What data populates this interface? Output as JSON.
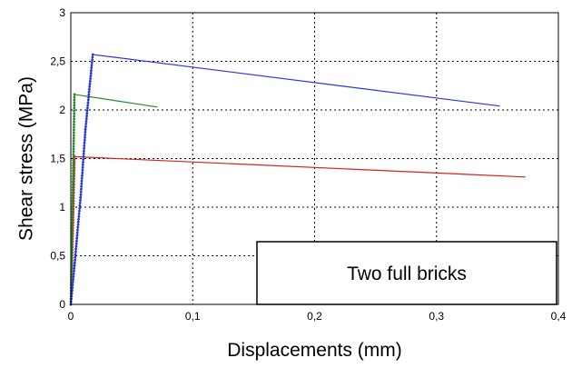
{
  "chart_data": {
    "type": "line",
    "xlabel": "Displacements (mm)",
    "ylabel": "Shear stress (MPa)",
    "xlim": [
      0,
      0.4
    ],
    "ylim": [
      0,
      3
    ],
    "x_ticks": [
      "0",
      "0,1",
      "0,2",
      "0,3",
      "0,4"
    ],
    "y_ticks": [
      "0",
      "0,5",
      "1",
      "1,5",
      "2",
      "2,5",
      "3"
    ],
    "grid": "dotted",
    "legend": "none",
    "annotation": "Two full bricks",
    "series": [
      {
        "color": "#d81f1f",
        "points": [
          [
            0,
            0
          ],
          [
            0.001,
            0.45
          ],
          [
            0.002,
            0.95
          ],
          [
            0.003,
            1.52
          ],
          [
            0.373,
            1.31
          ]
        ]
      },
      {
        "color": "#2a8a2a",
        "points": [
          [
            0,
            0
          ],
          [
            0.001,
            0.7
          ],
          [
            0.002,
            1.4
          ],
          [
            0.003,
            2.16
          ],
          [
            0.071,
            2.03
          ]
        ]
      },
      {
        "color": "#2b36d8",
        "points": [
          [
            0,
            0
          ],
          [
            0.003,
            0.4
          ],
          [
            0.008,
            1.1
          ],
          [
            0.012,
            1.8
          ],
          [
            0.018,
            2.57
          ],
          [
            0.352,
            2.04
          ]
        ]
      }
    ]
  }
}
